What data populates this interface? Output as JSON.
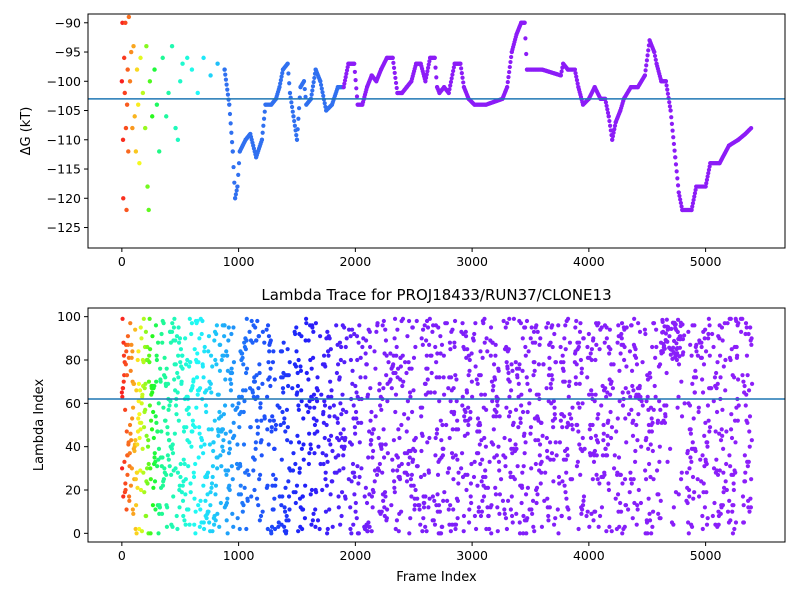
{
  "chart_data": [
    {
      "type": "scatter",
      "title": "",
      "xlabel": "",
      "ylabel": "ΔG (kT)",
      "xlim": [
        -290,
        5680
      ],
      "ylim": [
        -128.5,
        -88.5
      ],
      "xticks": [
        0,
        1000,
        2000,
        3000,
        4000,
        5000
      ],
      "yticks": [
        -90,
        -95,
        -100,
        -105,
        -110,
        -115,
        -120,
        -125
      ],
      "hline": -103,
      "colormap": "rainbow (red at early frames → violet at late frames)",
      "scatter_points": [
        [
          0,
          -100
        ],
        [
          5,
          -90
        ],
        [
          10,
          -110
        ],
        [
          12,
          -120
        ],
        [
          20,
          -96
        ],
        [
          25,
          -102
        ],
        [
          30,
          -90
        ],
        [
          35,
          -108
        ],
        [
          40,
          -122
        ],
        [
          45,
          -104
        ],
        [
          50,
          -98
        ],
        [
          55,
          -112
        ],
        [
          60,
          -89
        ],
        [
          70,
          -100
        ],
        [
          80,
          -95
        ],
        [
          90,
          -108
        ],
        [
          100,
          -94
        ],
        [
          110,
          -106
        ],
        [
          120,
          -112
        ],
        [
          130,
          -98
        ],
        [
          140,
          -104
        ],
        [
          150,
          -114
        ],
        [
          160,
          -96
        ],
        [
          180,
          -102
        ],
        [
          200,
          -108
        ],
        [
          210,
          -94
        ],
        [
          220,
          -118
        ],
        [
          230,
          -122
        ],
        [
          240,
          -100
        ],
        [
          260,
          -106
        ],
        [
          280,
          -98
        ],
        [
          300,
          -104
        ],
        [
          320,
          -112
        ],
        [
          350,
          -96
        ],
        [
          380,
          -106
        ],
        [
          400,
          -102
        ],
        [
          430,
          -94
        ],
        [
          460,
          -108
        ],
        [
          480,
          -110
        ],
        [
          500,
          -100
        ],
        [
          520,
          -97
        ],
        [
          560,
          -96
        ],
        [
          600,
          -98
        ],
        [
          650,
          -102
        ],
        [
          700,
          -96
        ],
        [
          760,
          -99
        ],
        [
          820,
          -97
        ],
        [
          880,
          -98
        ]
      ],
      "segments": [
        {
          "color": "#3070f0",
          "points": [
            [
              880,
              -98
            ],
            [
              920,
              -104
            ],
            [
              950,
              -112
            ],
            [
              970,
              -120
            ],
            [
              990,
              -118
            ],
            [
              1010,
              -112
            ],
            [
              1060,
              -110
            ],
            [
              1100,
              -109
            ],
            [
              1150,
              -113
            ],
            [
              1200,
              -110
            ],
            [
              1230,
              -104
            ],
            [
              1280,
              -104
            ],
            [
              1320,
              -103
            ],
            [
              1350,
              -101
            ],
            [
              1380,
              -98
            ],
            [
              1420,
              -97
            ],
            [
              1440,
              -102
            ],
            [
              1470,
              -106
            ],
            [
              1500,
              -110
            ],
            [
              1530,
              -101
            ],
            [
              1560,
              -100
            ],
            [
              1580,
              -104
            ],
            [
              1620,
              -103
            ],
            [
              1660,
              -98
            ],
            [
              1700,
              -100
            ],
            [
              1750,
              -105
            ],
            [
              1800,
              -104
            ],
            [
              1850,
              -101
            ],
            [
              1900,
              -101
            ]
          ]
        },
        {
          "color": "#8c1cf7",
          "points": [
            [
              1900,
              -101
            ],
            [
              1940,
              -97
            ],
            [
              1990,
              -97
            ],
            [
              2020,
              -104
            ],
            [
              2060,
              -104
            ],
            [
              2100,
              -101
            ],
            [
              2140,
              -99
            ],
            [
              2180,
              -100
            ],
            [
              2220,
              -98
            ],
            [
              2270,
              -96
            ],
            [
              2320,
              -96
            ],
            [
              2360,
              -102
            ],
            [
              2400,
              -102
            ],
            [
              2440,
              -101
            ],
            [
              2480,
              -100
            ],
            [
              2520,
              -97
            ],
            [
              2560,
              -97
            ],
            [
              2600,
              -100
            ],
            [
              2640,
              -96
            ],
            [
              2680,
              -96
            ],
            [
              2700,
              -101
            ],
            [
              2720,
              -102
            ],
            [
              2760,
              -101
            ],
            [
              2800,
              -102
            ],
            [
              2850,
              -97
            ],
            [
              2900,
              -97
            ],
            [
              2930,
              -101
            ],
            [
              2970,
              -103
            ],
            [
              3020,
              -104
            ],
            [
              3120,
              -104
            ],
            [
              3260,
              -103
            ],
            [
              3300,
              -101
            ],
            [
              3340,
              -95
            ],
            [
              3380,
              -92
            ],
            [
              3420,
              -90
            ],
            [
              3450,
              -90
            ],
            [
              3470,
              -98
            ],
            [
              3600,
              -98
            ],
            [
              3760,
              -99
            ],
            [
              3780,
              -97
            ],
            [
              3820,
              -98
            ],
            [
              3880,
              -98
            ],
            [
              3910,
              -101
            ],
            [
              3950,
              -104
            ],
            [
              4000,
              -103
            ],
            [
              4050,
              -101
            ],
            [
              4100,
              -103
            ],
            [
              4140,
              -103
            ],
            [
              4170,
              -106
            ],
            [
              4200,
              -110
            ],
            [
              4230,
              -107
            ],
            [
              4270,
              -105
            ],
            [
              4300,
              -103
            ],
            [
              4360,
              -101
            ],
            [
              4420,
              -101
            ],
            [
              4480,
              -99
            ],
            [
              4520,
              -93
            ],
            [
              4560,
              -95
            ],
            [
              4580,
              -97
            ],
            [
              4620,
              -100
            ],
            [
              4660,
              -100
            ],
            [
              4700,
              -105
            ],
            [
              4740,
              -113
            ],
            [
              4770,
              -119
            ],
            [
              4800,
              -122
            ],
            [
              4880,
              -122
            ],
            [
              4920,
              -118
            ],
            [
              5000,
              -118
            ],
            [
              5040,
              -114
            ],
            [
              5120,
              -114
            ],
            [
              5200,
              -111
            ],
            [
              5280,
              -110
            ],
            [
              5340,
              -109
            ],
            [
              5390,
              -108
            ]
          ]
        }
      ]
    },
    {
      "type": "scatter",
      "title": "Lambda Trace for PROJ18433/RUN37/CLONE13",
      "xlabel": "Frame Index",
      "ylabel": "Lambda Index",
      "xlim": [
        -290,
        5680
      ],
      "ylim": [
        -4,
        104
      ],
      "xticks": [
        0,
        1000,
        2000,
        3000,
        4000,
        5000
      ],
      "yticks": [
        0,
        20,
        40,
        60,
        80,
        100
      ],
      "hline": 62,
      "frames": 5400,
      "value_range": [
        0,
        99
      ],
      "colormap": "rainbow (red at early frames → violet at late frames)"
    }
  ],
  "axis_tick_text": {
    "top_x": [
      "0",
      "1000",
      "2000",
      "3000",
      "4000",
      "5000"
    ],
    "top_y": [
      "−90",
      "−95",
      "−100",
      "−105",
      "−110",
      "−115",
      "−120",
      "−125"
    ],
    "bottom_x": [
      "0",
      "1000",
      "2000",
      "3000",
      "4000",
      "5000"
    ],
    "bottom_y": [
      "0",
      "20",
      "40",
      "60",
      "80",
      "100"
    ]
  },
  "colors": {
    "hline": "#1f77b4",
    "axes": "#000000",
    "background": "#ffffff"
  }
}
